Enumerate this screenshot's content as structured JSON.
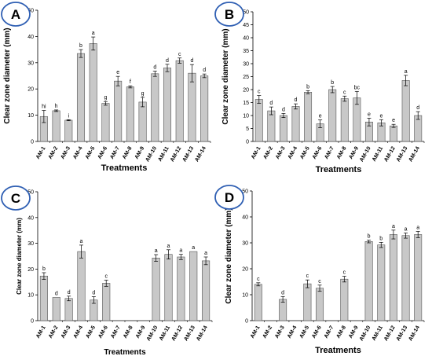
{
  "chart_data": [
    {
      "panel": "A",
      "type": "bar",
      "categories": [
        "AM-1",
        "AM-2",
        "AM-3",
        "AM-4",
        "AM-5",
        "AM-6",
        "AM-7",
        "AM-8",
        "AM-9",
        "AM-10",
        "AM-11",
        "AM-12",
        "AM-13",
        "AM-14"
      ],
      "values": [
        9.5,
        11.7,
        8.1,
        33.5,
        37.3,
        14.5,
        23.0,
        20.8,
        15.0,
        25.8,
        28.0,
        30.8,
        26.0,
        25.0
      ],
      "errors": [
        2.3,
        0.3,
        0.2,
        1.5,
        2.5,
        0.7,
        1.8,
        0.4,
        1.8,
        1.0,
        1.4,
        1.0,
        3.3,
        0.7
      ],
      "letters": [
        "hi",
        "h",
        "i",
        "b",
        "a",
        "g",
        "e",
        "f",
        "g",
        "d",
        "d",
        "c",
        "d",
        "d"
      ],
      "ylabel": "Clear zone diameter (mm)",
      "xlabel": "Treatments",
      "ylim": [
        0,
        50
      ],
      "yticks": [
        0,
        10,
        20,
        30,
        40,
        50
      ]
    },
    {
      "panel": "B",
      "type": "bar",
      "categories": [
        "AM-1",
        "AM-2",
        "AM-3",
        "AM-4",
        "AM-5",
        "AM-6",
        "AM-7",
        "AM-8",
        "AM-9",
        "AM-10",
        "AM-11",
        "AM-12",
        "AM-13",
        "AM-14"
      ],
      "values": [
        16.2,
        11.8,
        10.0,
        13.5,
        19.0,
        6.8,
        20.0,
        16.5,
        16.8,
        7.5,
        7.2,
        6.0,
        23.5,
        10.0
      ],
      "errors": [
        1.5,
        1.5,
        0.8,
        1.0,
        0.6,
        1.5,
        1.2,
        1.0,
        2.5,
        1.5,
        1.2,
        0.6,
        2.0,
        1.5
      ],
      "letters": [
        "c",
        "d",
        "d",
        "d",
        "b",
        "e",
        "b",
        "c",
        "bc",
        "e",
        "e",
        "e",
        "a",
        "d"
      ],
      "ylabel": "Clear zone diameter (mm)",
      "xlabel": "Treatments",
      "ylim": [
        0,
        50
      ],
      "yticks": [
        0,
        5,
        10,
        15,
        20,
        25,
        30,
        35,
        40,
        45,
        50
      ]
    },
    {
      "panel": "C",
      "type": "bar",
      "categories": [
        "AM-1",
        "AM-2",
        "AM-3",
        "AM-4",
        "AM-5",
        "AM-6",
        "AM-7",
        "AM-8",
        "AM-9",
        "AM-10",
        "AM-11",
        "AM-12",
        "AM-13",
        "AM-14"
      ],
      "values": [
        17.3,
        9.0,
        8.6,
        26.8,
        8.0,
        14.5,
        0,
        0,
        0,
        24.3,
        25.7,
        24.7,
        26.8,
        23.2
      ],
      "errors": [
        1.3,
        0,
        0.9,
        2.5,
        1.3,
        1.2,
        0,
        0,
        0,
        1.3,
        1.8,
        1.0,
        0,
        1.5
      ],
      "letters": [
        "b",
        "d",
        "d",
        "a",
        "d",
        "c",
        "",
        "",
        "",
        "a",
        "a",
        "a",
        "a",
        "a"
      ],
      "ylabel": "Clear zone diameter (mm)",
      "xlabel": "Treatments",
      "ylim": [
        0,
        50
      ],
      "yticks": [
        0,
        10,
        20,
        30,
        40,
        50
      ]
    },
    {
      "panel": "D",
      "type": "bar",
      "categories": [
        "AM-1",
        "AM-2",
        "AM-3",
        "AM-4",
        "AM-5",
        "AM-6",
        "AM-7",
        "AM-8",
        "AM-9",
        "AM-10",
        "AM-11",
        "AM-12",
        "AM-13",
        "AM-14"
      ],
      "values": [
        14.0,
        0,
        8.2,
        0,
        14.2,
        12.5,
        0,
        16.0,
        0,
        30.5,
        29.2,
        33.2,
        32.8,
        33.2
      ],
      "errors": [
        0.6,
        0,
        1.1,
        0,
        1.5,
        1.2,
        0,
        1.1,
        0,
        0.5,
        1.0,
        1.7,
        1.0,
        1.2
      ],
      "letters": [
        "c",
        "",
        "d",
        "",
        "c",
        "c",
        "",
        "c",
        "",
        "b",
        "b",
        "a",
        "a",
        "a"
      ],
      "ylabel": "Clear zone diameter (mm)",
      "xlabel": "Treatments",
      "ylim": [
        0,
        50
      ],
      "yticks": [
        0,
        10,
        20,
        30,
        40,
        50
      ]
    }
  ],
  "style": {
    "bar_fill": "#c8c8c8",
    "bar_stroke": "#555555",
    "badge_stroke": "#2f5fb3"
  }
}
